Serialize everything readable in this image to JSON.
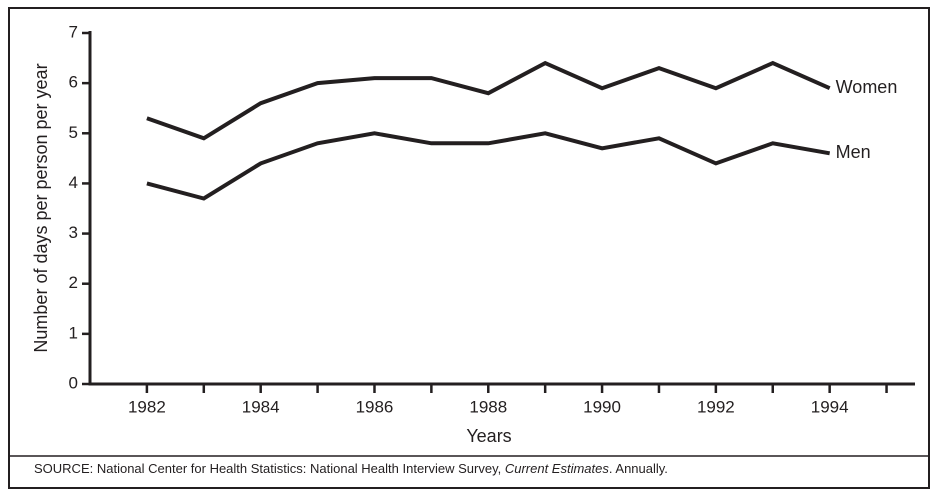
{
  "chart_data": {
    "type": "line",
    "x_label": "Years",
    "y_label": "Number of days per person per year",
    "x": [
      1982,
      1983,
      1984,
      1985,
      1986,
      1987,
      1988,
      1989,
      1990,
      1991,
      1992,
      1993,
      1994
    ],
    "series": [
      {
        "name": "Women",
        "color": "#231f20",
        "values": [
          5.3,
          4.9,
          5.6,
          6.0,
          6.1,
          6.1,
          5.8,
          6.4,
          5.9,
          6.3,
          5.9,
          6.4,
          5.9
        ]
      },
      {
        "name": "Men",
        "color": "#231f20",
        "values": [
          4.0,
          3.7,
          4.4,
          4.8,
          5.0,
          4.8,
          4.8,
          5.0,
          4.7,
          4.9,
          4.4,
          4.8,
          4.6
        ]
      }
    ],
    "xlim": [
      1981,
      1995.5
    ],
    "xticks": [
      1982,
      1984,
      1986,
      1988,
      1990,
      1992,
      1994
    ],
    "xminor_ticks": [
      1983,
      1985,
      1987,
      1989,
      1991,
      1993,
      1995
    ],
    "ylim": [
      0,
      7
    ],
    "yticks": [
      0,
      1,
      2,
      3,
      4,
      5,
      6,
      7
    ],
    "grid": false,
    "source": {
      "text": "SOURCE: National Center for Health Statistics: National Health Interview Survey, ",
      "italic": "Current Estimates",
      "end": ". Annually."
    }
  }
}
